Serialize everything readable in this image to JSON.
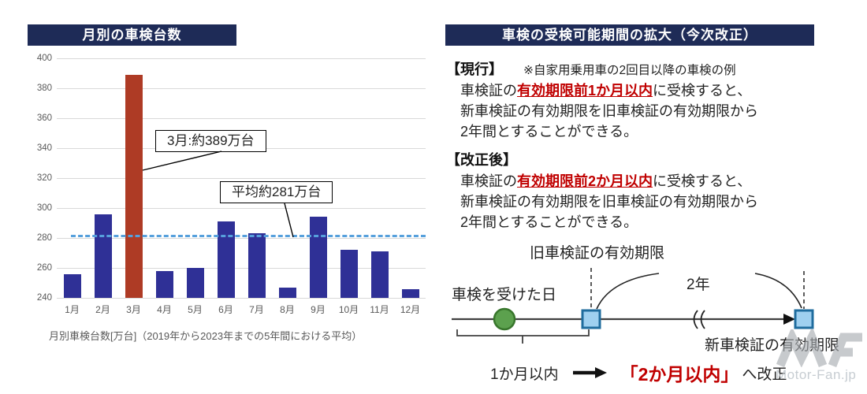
{
  "colors": {
    "header_bg": "#1E2B57",
    "header_text": "#FFFFFF",
    "bar": "#2F3096",
    "bar_highlight": "#AE3B25",
    "avg_line": "#56A0DC",
    "gridline": "#D9D9D9",
    "axis_text": "#595959",
    "body_text": "#222222",
    "red_text": "#C00000",
    "timeline_line": "#404040",
    "circle_fill": "#5CA14E",
    "circle_border": "#38762C",
    "square_fill": "#9FD0F0",
    "square_border": "#1F6C9E",
    "watermark_gray": "#A7ABB0"
  },
  "left_panel": {
    "title": "月別の車検台数",
    "caption": "月別車検台数[万台]（2019年から2023年までの5年間における平均）",
    "annotations": {
      "march": "3月:約389万台",
      "average": "平均約281万台"
    }
  },
  "chart_data": {
    "type": "bar",
    "title": "月別の車検台数",
    "categories": [
      "1月",
      "2月",
      "3月",
      "4月",
      "5月",
      "6月",
      "7月",
      "8月",
      "9月",
      "10月",
      "11月",
      "12月"
    ],
    "values": [
      256,
      296,
      389,
      258,
      260,
      291,
      283,
      247,
      294,
      272,
      271,
      246
    ],
    "highlight_index": 2,
    "highlight_label": "3月:約389万台",
    "average_value": 281,
    "average_label": "平均約281万台",
    "ylim": [
      240,
      400
    ],
    "yticks": [
      240,
      260,
      280,
      300,
      320,
      340,
      360,
      380,
      400
    ],
    "xlabel": "",
    "ylabel": "月別車検台数[万台]",
    "grid": true,
    "legend": false
  },
  "right_panel": {
    "title": "車検の受検可能期間の拡大（今次改正）",
    "note": "※自家用乗用車の2回目以降の車検の例",
    "current": {
      "label": "【現行】",
      "line1_pre": "車検証の",
      "line1_highlight": "有効期限前1か月以内",
      "line1_post": "に受検すると、",
      "line2": "新車検証の有効期限を旧車検証の有効期限から",
      "line3": "2年間とすることができる。"
    },
    "revised": {
      "label": "【改正後】",
      "line1_pre": "車検証の",
      "line1_highlight": "有効期限前2か月以内",
      "line1_post": "に受検すると、",
      "line2": "新車検証の有効期限を旧車検証の有効期限から",
      "line3": "2年間とすることができる。"
    },
    "timeline": {
      "old_expiry": "旧車検証の有効期限",
      "inspection_day": "車検を受けた日",
      "two_years": "2年",
      "new_expiry": "新車検証の有効期限",
      "before": "1か月以内",
      "after": "「2か月以内」",
      "after_suffix": "へ改正"
    }
  },
  "watermark": {
    "text": "Motor-Fan.jp"
  }
}
